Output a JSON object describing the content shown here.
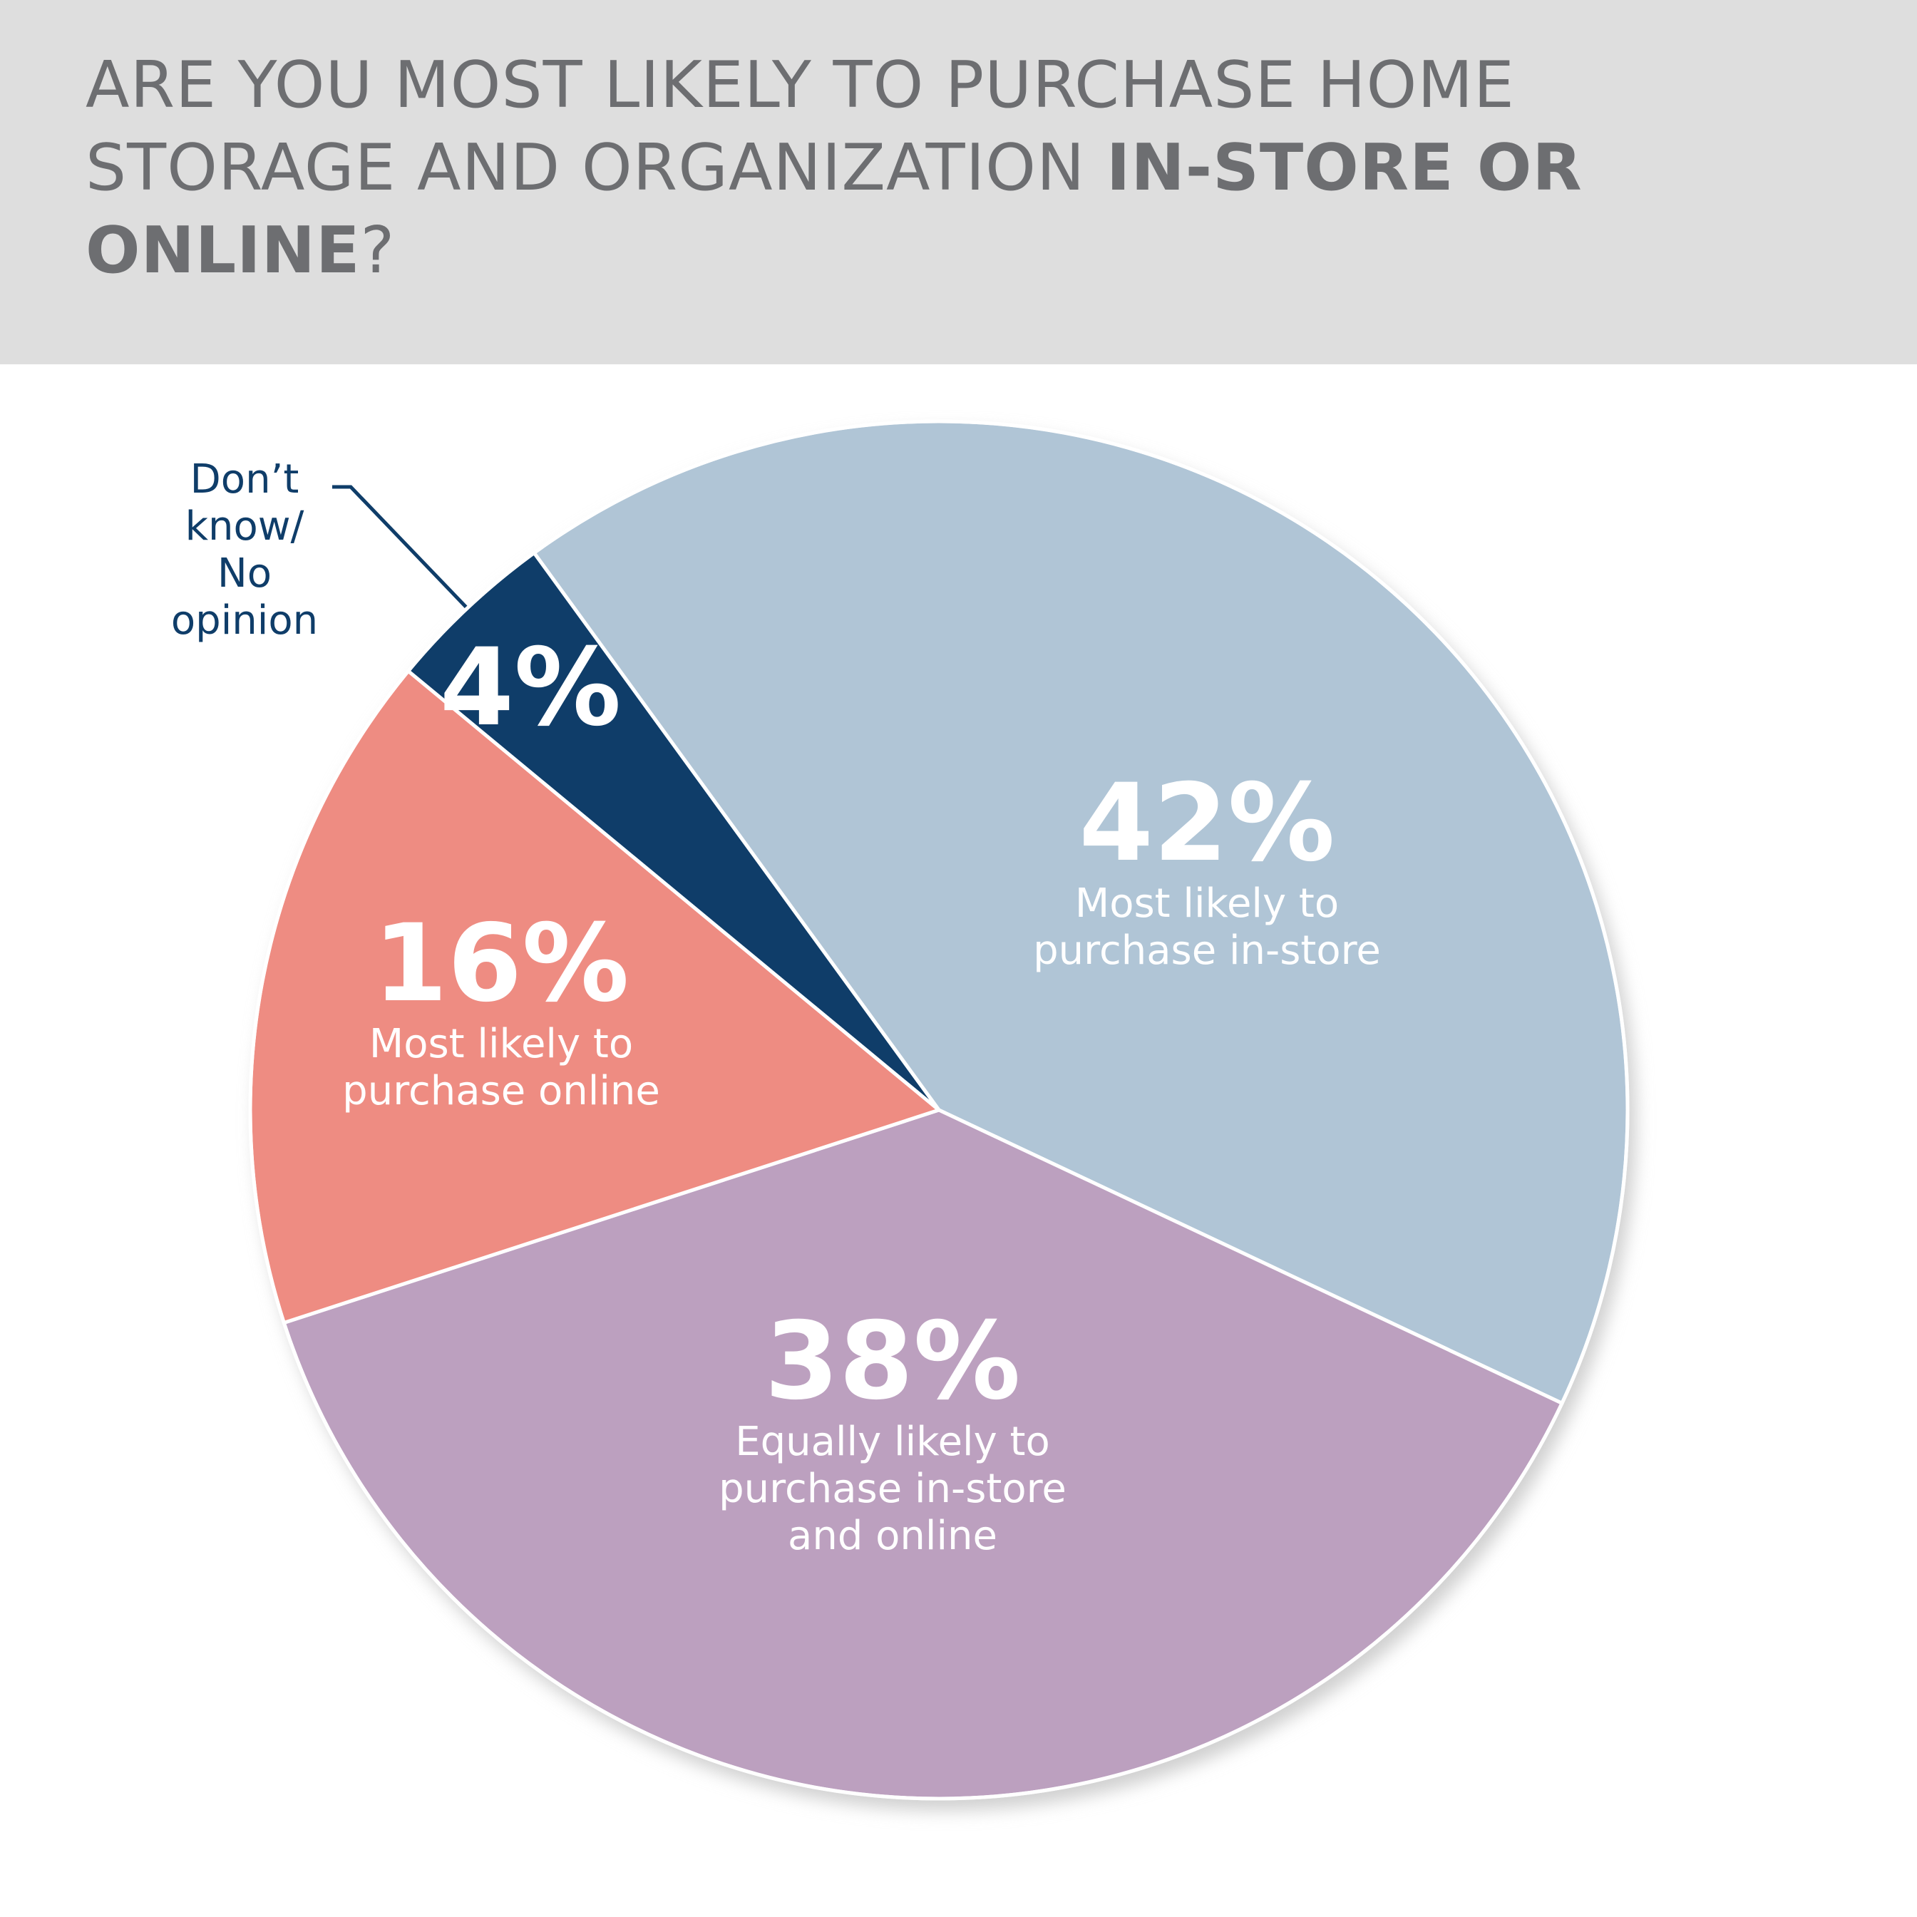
{
  "chart_data": {
    "type": "pie",
    "title": [
      "ARE YOU MOST LIKELY TO PURCHASE HOME STORAGE AND ORGANIZATION",
      "IN-STORE OR ONLINE",
      "?"
    ],
    "title_bold": [
      false,
      true,
      false
    ],
    "categories": [
      "Most likely to\npurchase in-store",
      "Equally likely to\npurchase in-store\nand online",
      "Most likely to\npurchase online",
      "Don’t\nknow/\nNo\nopinion"
    ],
    "values": [
      42,
      38,
      16,
      4
    ],
    "value_labels": [
      "42%",
      "38%",
      "16%",
      "4%"
    ],
    "colors": [
      "#b0c5d6",
      "#bca0bf",
      "#ee8c82",
      "#0f3d69"
    ]
  }
}
